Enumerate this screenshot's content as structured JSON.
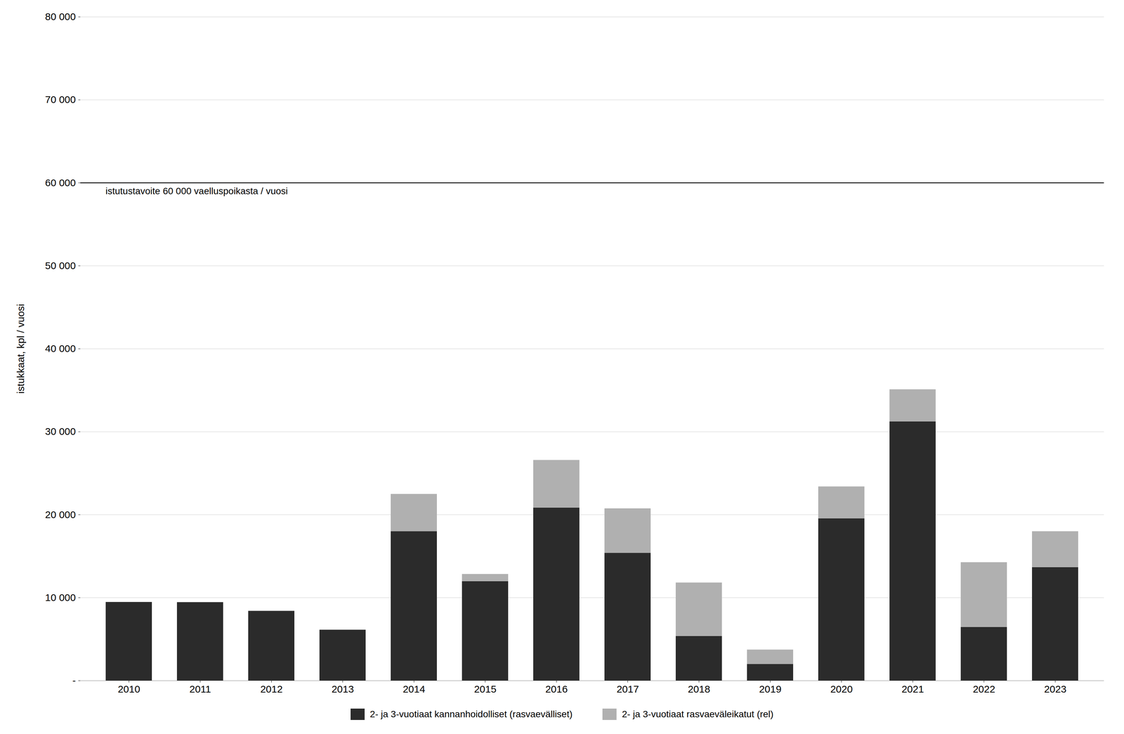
{
  "chart_data": {
    "type": "bar",
    "stacked": true,
    "categories": [
      "2010",
      "2011",
      "2012",
      "2013",
      "2014",
      "2015",
      "2016",
      "2017",
      "2018",
      "2019",
      "2020",
      "2021",
      "2022",
      "2023"
    ],
    "series": [
      {
        "name": "2- ja 3-vuotiaat kannanhoidolliset (rasvaevälliset)",
        "color": "#2b2b2b",
        "values": [
          9466,
          9447,
          8396,
          6121,
          17996,
          11971,
          20846,
          15384,
          5374,
          2000,
          19539,
          31230,
          6446,
          13658
        ]
      },
      {
        "name": "2- ja 3-vuotiaat rasvaeväleikatut (rel)",
        "color": "#b0b0b0",
        "values": [
          0,
          0,
          0,
          0,
          4493,
          869,
          5733,
          5363,
          6437,
          1728,
          3850,
          3867,
          7811,
          4334
        ]
      }
    ],
    "ylabel": "istukkaat, kpl / vuosi",
    "ylim": [
      0,
      80000
    ],
    "yticks": [
      {
        "value": 0,
        "label": "-"
      },
      {
        "value": 10000,
        "label": "10 000"
      },
      {
        "value": 20000,
        "label": "20 000"
      },
      {
        "value": 30000,
        "label": "30 000"
      },
      {
        "value": 40000,
        "label": "40 000"
      },
      {
        "value": 50000,
        "label": "50 000"
      },
      {
        "value": 60000,
        "label": "60 000"
      },
      {
        "value": 70000,
        "label": "70 000"
      },
      {
        "value": 80000,
        "label": "80 000"
      }
    ],
    "hlines": [
      {
        "y": 60000,
        "label": "istutustavoite 60 000 vaelluspoikasta / vuosi",
        "color": "#000000"
      }
    ],
    "grid": true,
    "legend": "bottom"
  }
}
